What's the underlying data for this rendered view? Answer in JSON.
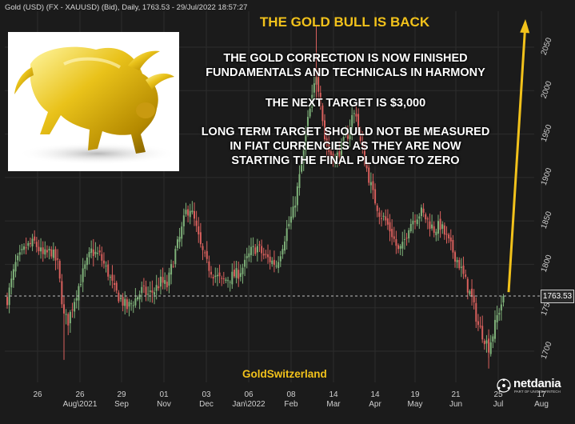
{
  "header": {
    "instrument_line": "Gold (USD) (FX - XAUUSD) (Bid), Daily, 1763.53 - 29/Jul/2022 18:57:27"
  },
  "headline": "THE GOLD BULL IS BACK",
  "message_block_1": [
    "THE GOLD CORRECTION IS NOW FINISHED",
    "FUNDAMENTALS AND TECHNICALS IN HARMONY"
  ],
  "message_block_2": [
    "THE NEXT TARGET IS $3,000"
  ],
  "message_block_3": [
    "LONG TERM TARGET SHOULD NOT BE MEASURED",
    "IN FIAT CURRENCIES AS THEY ARE NOW",
    "STARTING THE  FINAL PLUNGE TO ZERO"
  ],
  "brand": "GoldSwitzerland",
  "vendor": {
    "name": "netdania",
    "tagline": "PART OF UNITED FINTECH"
  },
  "current_price_label": "1763.53",
  "colors": {
    "accent_gold": "#f2c21b",
    "up_candle": "#7fb27a",
    "down_candle": "#d9605d",
    "background": "#1b1b1b",
    "arrow": "#f2c21b"
  },
  "chart_data": {
    "type": "candlestick",
    "title": "Gold (USD) (FX - XAUUSD) (Bid), Daily",
    "y_axis": {
      "position": "right",
      "ticks": [
        1700,
        1750,
        1800,
        1850,
        1900,
        1950,
        2000,
        2050
      ],
      "range": [
        1675,
        2075
      ]
    },
    "x_axis": {
      "ticks": [
        {
          "day": "26",
          "month": ""
        },
        {
          "day": "26",
          "month": "Aug\\2021"
        },
        {
          "day": "29",
          "month": "Sep"
        },
        {
          "day": "01",
          "month": "Nov"
        },
        {
          "day": "03",
          "month": "Dec"
        },
        {
          "day": "06",
          "month": "Jan\\2022"
        },
        {
          "day": "08",
          "month": "Feb"
        },
        {
          "day": "14",
          "month": "Mar"
        },
        {
          "day": "14",
          "month": "Apr"
        },
        {
          "day": "19",
          "month": "May"
        },
        {
          "day": "21",
          "month": "Jun"
        },
        {
          "day": "25",
          "month": "Jul"
        },
        {
          "day": "17",
          "month": "Aug"
        }
      ],
      "period": "Jul 2021 - Aug 2022"
    },
    "last_price": 1763.53,
    "grid": true,
    "price_path": [
      [
        0,
        1760
      ],
      [
        4,
        1800
      ],
      [
        9,
        1820
      ],
      [
        13,
        1825
      ],
      [
        17,
        1810
      ],
      [
        21,
        1815
      ],
      [
        24,
        1800
      ],
      [
        27,
        1740
      ],
      [
        29,
        1735
      ],
      [
        32,
        1760
      ],
      [
        36,
        1790
      ],
      [
        40,
        1815
      ],
      [
        44,
        1810
      ],
      [
        48,
        1790
      ],
      [
        51,
        1770
      ],
      [
        54,
        1760
      ],
      [
        57,
        1750
      ],
      [
        61,
        1760
      ],
      [
        64,
        1770
      ],
      [
        67,
        1765
      ],
      [
        70,
        1770
      ],
      [
        73,
        1780
      ],
      [
        76,
        1775
      ],
      [
        78,
        1795
      ],
      [
        80,
        1815
      ],
      [
        82,
        1830
      ],
      [
        85,
        1860
      ],
      [
        87,
        1865
      ],
      [
        89,
        1850
      ],
      [
        92,
        1820
      ],
      [
        95,
        1800
      ],
      [
        98,
        1790
      ],
      [
        102,
        1780
      ],
      [
        106,
        1785
      ],
      [
        110,
        1790
      ],
      [
        113,
        1800
      ],
      [
        116,
        1815
      ],
      [
        119,
        1820
      ],
      [
        122,
        1810
      ],
      [
        125,
        1805
      ],
      [
        128,
        1800
      ],
      [
        130,
        1815
      ],
      [
        133,
        1840
      ],
      [
        136,
        1860
      ],
      [
        139,
        1900
      ],
      [
        141,
        1930
      ],
      [
        143,
        1965
      ],
      [
        145,
        1990
      ],
      [
        147,
        2020
      ],
      [
        149,
        1990
      ],
      [
        151,
        1945
      ],
      [
        153,
        1930
      ],
      [
        156,
        1920
      ],
      [
        159,
        1935
      ],
      [
        162,
        1950
      ],
      [
        164,
        1970
      ],
      [
        166,
        1975
      ],
      [
        168,
        1940
      ],
      [
        171,
        1910
      ],
      [
        174,
        1880
      ],
      [
        177,
        1860
      ],
      [
        180,
        1850
      ],
      [
        183,
        1835
      ],
      [
        186,
        1815
      ],
      [
        188,
        1820
      ],
      [
        191,
        1845
      ],
      [
        194,
        1855
      ],
      [
        197,
        1860
      ],
      [
        200,
        1850
      ],
      [
        203,
        1840
      ],
      [
        206,
        1845
      ],
      [
        209,
        1830
      ],
      [
        212,
        1815
      ],
      [
        215,
        1800
      ],
      [
        218,
        1780
      ],
      [
        221,
        1760
      ],
      [
        224,
        1730
      ],
      [
        227,
        1715
      ],
      [
        229,
        1705
      ],
      [
        231,
        1720
      ],
      [
        233,
        1740
      ],
      [
        235,
        1755
      ],
      [
        236,
        1763.53
      ]
    ],
    "arrow_projection": {
      "from_price": 1768,
      "direction": "up",
      "note": "target beyond chart top"
    }
  }
}
